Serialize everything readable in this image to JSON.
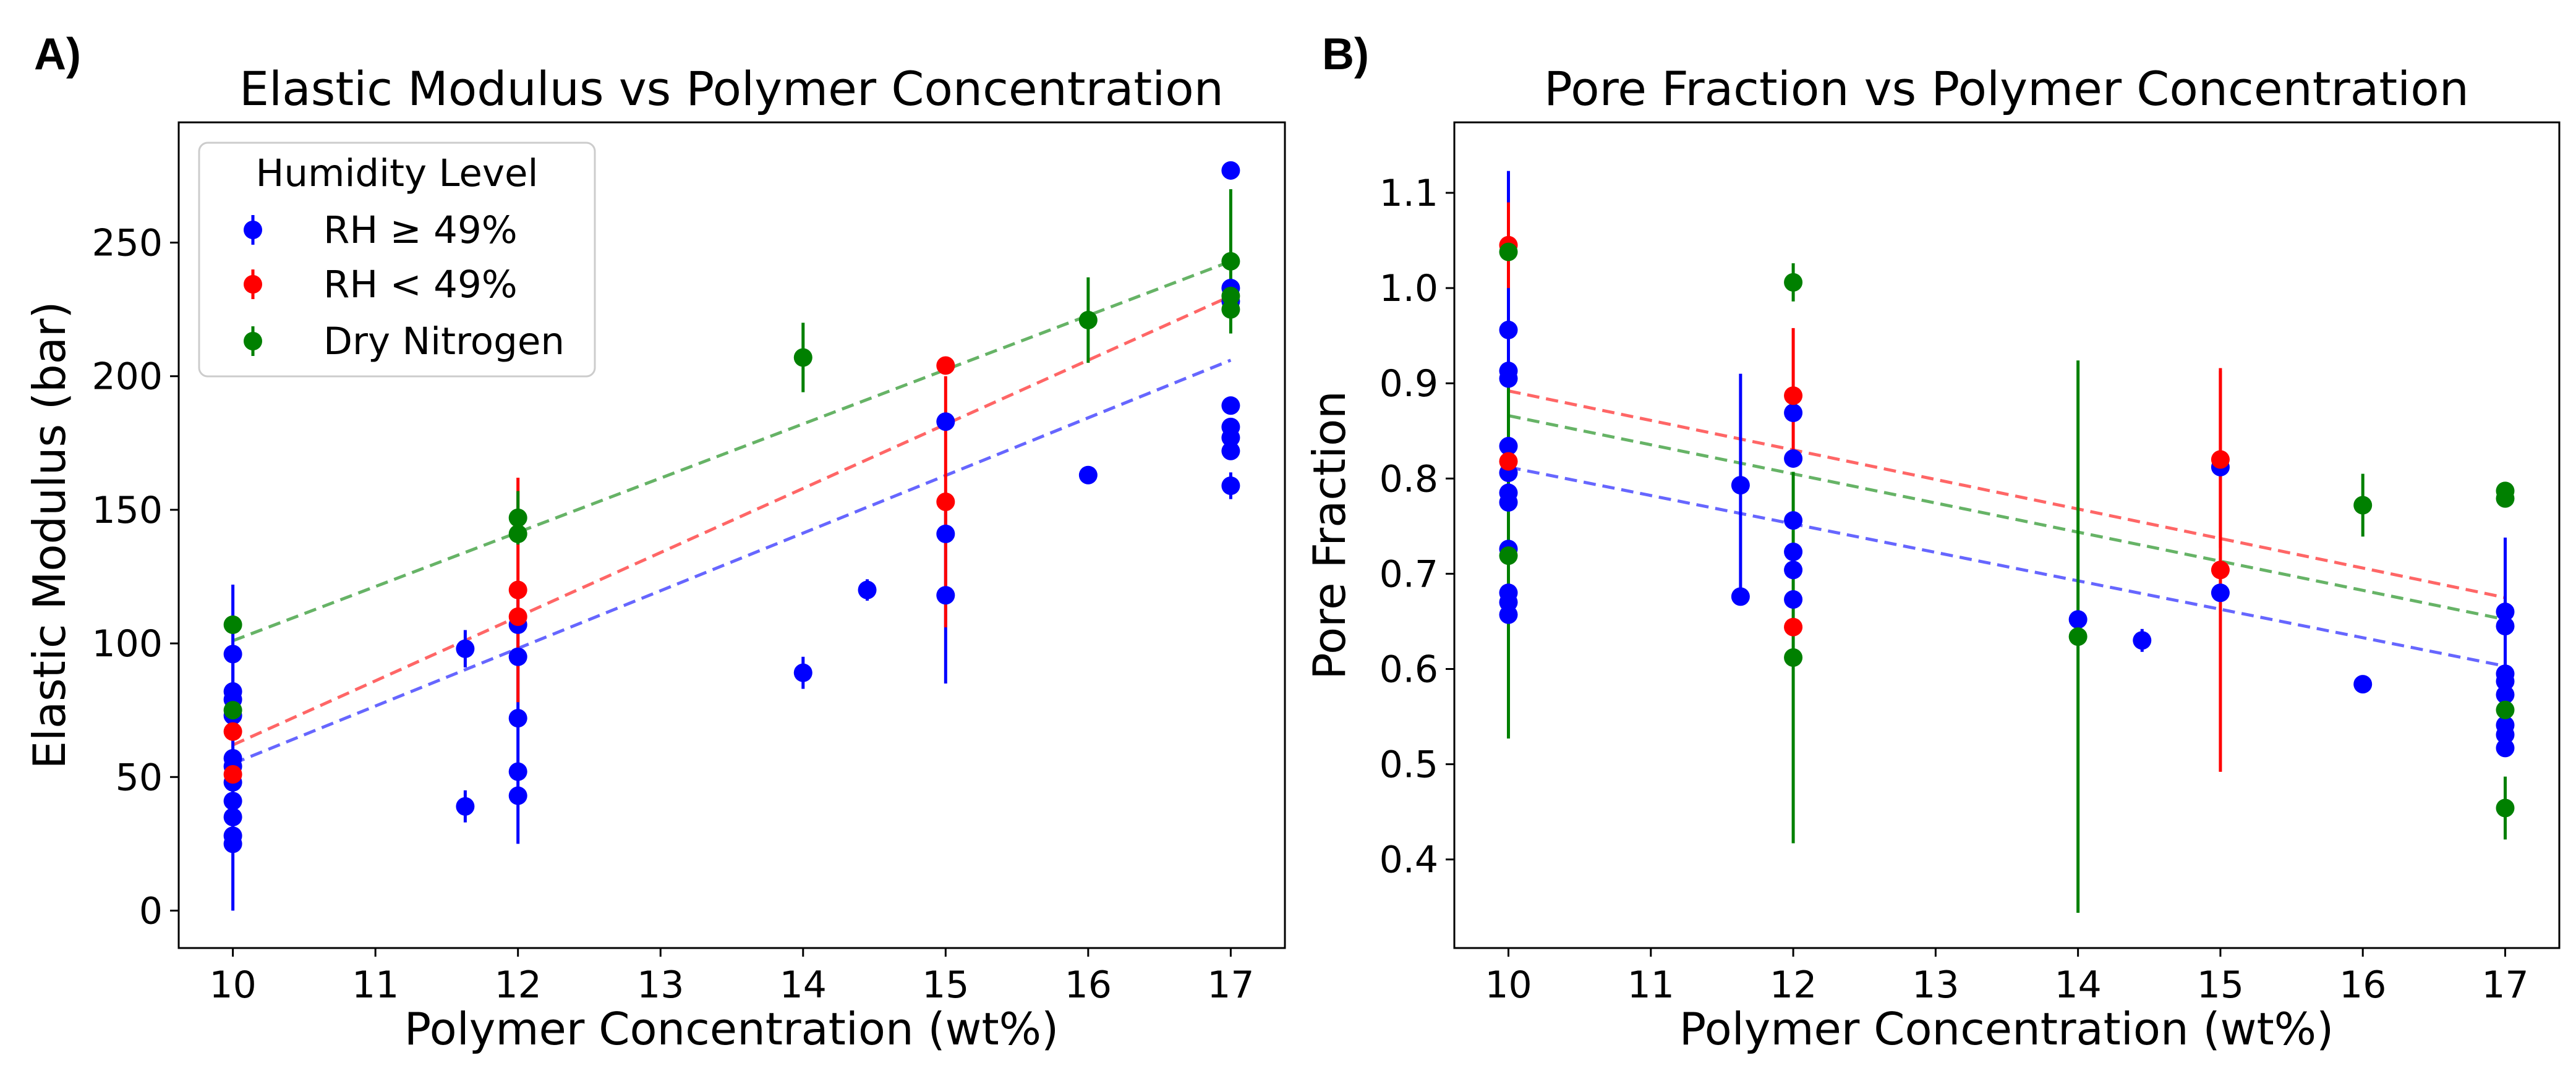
{
  "figure": {
    "panels": [
      {
        "letter": "A)",
        "title": "Elastic Modulus vs Polymer Concentration",
        "xlabel": "Polymer Concentration (wt%)",
        "ylabel": "Elastic Modulus (bar)"
      },
      {
        "letter": "B)",
        "title": "Pore Fraction vs Polymer Concentration",
        "xlabel": "Polymer Concentration (wt%)",
        "ylabel": "Pore Fraction"
      }
    ],
    "legend": {
      "title": "Humidity Level",
      "entries": [
        "RH ≥ 49%",
        "RH < 49%",
        "Dry Nitrogen"
      ]
    }
  },
  "chart_data": [
    {
      "type": "scatter",
      "title": "Elastic Modulus vs Polymer Concentration",
      "xlabel": "Polymer Concentration (wt%)",
      "ylabel": "Elastic Modulus (bar)",
      "xlim": [
        9.62,
        17.38
      ],
      "ylim": [
        -14,
        295
      ],
      "xticks": [
        10,
        11,
        12,
        13,
        14,
        15,
        16,
        17
      ],
      "yticks": [
        0,
        50,
        100,
        150,
        200,
        250
      ],
      "grid": false,
      "legend": "top-left",
      "series": [
        {
          "name": "RH ≥ 49%",
          "color": "#0000ff",
          "points": [
            {
              "x": 10,
              "y": 96,
              "err": 26
            },
            {
              "x": 10,
              "y": 82,
              "err": 0
            },
            {
              "x": 10,
              "y": 79,
              "err": 0
            },
            {
              "x": 10,
              "y": 73,
              "err": 0
            },
            {
              "x": 10,
              "y": 57,
              "err": 0
            },
            {
              "x": 10,
              "y": 54,
              "err": 0
            },
            {
              "x": 10,
              "y": 48,
              "err": 48
            },
            {
              "x": 10,
              "y": 41,
              "err": 0
            },
            {
              "x": 10,
              "y": 35,
              "err": 0
            },
            {
              "x": 10,
              "y": 28,
              "err": 0
            },
            {
              "x": 10,
              "y": 25,
              "err": 0
            },
            {
              "x": 11.63,
              "y": 39,
              "err": 6
            },
            {
              "x": 11.63,
              "y": 98,
              "err": 7
            },
            {
              "x": 12,
              "y": 107,
              "err": 0
            },
            {
              "x": 12,
              "y": 95,
              "err": 0
            },
            {
              "x": 12,
              "y": 72,
              "err": 47
            },
            {
              "x": 12,
              "y": 52,
              "err": 0
            },
            {
              "x": 12,
              "y": 43,
              "err": 0
            },
            {
              "x": 14,
              "y": 89,
              "err": 6
            },
            {
              "x": 14.45,
              "y": 120,
              "err": 4
            },
            {
              "x": 15,
              "y": 183,
              "err": 0
            },
            {
              "x": 15,
              "y": 141,
              "err": 0
            },
            {
              "x": 15,
              "y": 118,
              "err": 33
            },
            {
              "x": 16,
              "y": 163,
              "err": 3
            },
            {
              "x": 17,
              "y": 277,
              "err": 0
            },
            {
              "x": 17,
              "y": 233,
              "err": 0
            },
            {
              "x": 17,
              "y": 228,
              "err": 0
            },
            {
              "x": 17,
              "y": 189,
              "err": 0
            },
            {
              "x": 17,
              "y": 181,
              "err": 0
            },
            {
              "x": 17,
              "y": 177,
              "err": 0
            },
            {
              "x": 17,
              "y": 172,
              "err": 0
            },
            {
              "x": 17,
              "y": 159,
              "err": 5
            }
          ],
          "fit": {
            "x": [
              10,
              17
            ],
            "y": [
              55,
              206
            ]
          }
        },
        {
          "name": "RH < 49%",
          "color": "#ff0000",
          "points": [
            {
              "x": 10,
              "y": 67,
              "err": 0
            },
            {
              "x": 10,
              "y": 51,
              "err": 0
            },
            {
              "x": 12,
              "y": 120,
              "err": 42
            },
            {
              "x": 12,
              "y": 110,
              "err": 0
            },
            {
              "x": 15,
              "y": 204,
              "err": 0
            },
            {
              "x": 15,
              "y": 153,
              "err": 47
            }
          ],
          "fit": {
            "x": [
              10,
              17
            ],
            "y": [
              62,
              230
            ]
          }
        },
        {
          "name": "Dry Nitrogen",
          "color": "#008000",
          "points": [
            {
              "x": 10,
              "y": 107,
              "err": 0
            },
            {
              "x": 10,
              "y": 75,
              "err": 0
            },
            {
              "x": 12,
              "y": 147,
              "err": 10
            },
            {
              "x": 12,
              "y": 141,
              "err": 0
            },
            {
              "x": 14,
              "y": 207,
              "err": 13
            },
            {
              "x": 16,
              "y": 221,
              "err": 16
            },
            {
              "x": 17,
              "y": 243,
              "err": 27
            },
            {
              "x": 17,
              "y": 230,
              "err": 0
            },
            {
              "x": 17,
              "y": 225,
              "err": 0
            }
          ],
          "fit": {
            "x": [
              10,
              17
            ],
            "y": [
              101,
              243
            ]
          }
        }
      ]
    },
    {
      "type": "scatter",
      "title": "Pore Fraction vs Polymer Concentration",
      "xlabel": "Polymer Concentration (wt%)",
      "ylabel": "Pore Fraction",
      "xlim": [
        9.62,
        17.38
      ],
      "ylim": [
        0.307,
        1.174
      ],
      "xticks": [
        10,
        11,
        12,
        13,
        14,
        15,
        16,
        17
      ],
      "yticks": [
        0.4,
        0.5,
        0.6,
        0.7,
        0.8,
        0.9,
        1.0,
        1.1
      ],
      "grid": false,
      "series": [
        {
          "name": "RH ≥ 49%",
          "color": "#0000ff",
          "points": [
            {
              "x": 10,
              "y": 0.956,
              "err": 0.167
            },
            {
              "x": 10,
              "y": 0.913,
              "err": 0
            },
            {
              "x": 10,
              "y": 0.905,
              "err": 0
            },
            {
              "x": 10,
              "y": 0.834,
              "err": 0
            },
            {
              "x": 10,
              "y": 0.806,
              "err": 0
            },
            {
              "x": 10,
              "y": 0.785,
              "err": 0
            },
            {
              "x": 10,
              "y": 0.775,
              "err": 0
            },
            {
              "x": 10,
              "y": 0.726,
              "err": 0
            },
            {
              "x": 10,
              "y": 0.68,
              "err": 0
            },
            {
              "x": 10,
              "y": 0.67,
              "err": 0
            },
            {
              "x": 10,
              "y": 0.657,
              "err": 0
            },
            {
              "x": 11.63,
              "y": 0.793,
              "err": 0.117
            },
            {
              "x": 11.63,
              "y": 0.676,
              "err": 0
            },
            {
              "x": 12,
              "y": 0.869,
              "err": 0
            },
            {
              "x": 12,
              "y": 0.821,
              "err": 0
            },
            {
              "x": 12,
              "y": 0.756,
              "err": 0
            },
            {
              "x": 12,
              "y": 0.723,
              "err": 0
            },
            {
              "x": 12,
              "y": 0.704,
              "err": 0
            },
            {
              "x": 12,
              "y": 0.673,
              "err": 0
            },
            {
              "x": 14,
              "y": 0.652,
              "err": 0
            },
            {
              "x": 14.45,
              "y": 0.63,
              "err": 0.012
            },
            {
              "x": 15,
              "y": 0.812,
              "err": 0
            },
            {
              "x": 15,
              "y": 0.68,
              "err": 0
            },
            {
              "x": 16,
              "y": 0.584,
              "err": 0.009
            },
            {
              "x": 17,
              "y": 0.66,
              "err": 0.078
            },
            {
              "x": 17,
              "y": 0.645,
              "err": 0
            },
            {
              "x": 17,
              "y": 0.595,
              "err": 0
            },
            {
              "x": 17,
              "y": 0.587,
              "err": 0
            },
            {
              "x": 17,
              "y": 0.573,
              "err": 0
            },
            {
              "x": 17,
              "y": 0.541,
              "err": 0
            },
            {
              "x": 17,
              "y": 0.531,
              "err": 0
            },
            {
              "x": 17,
              "y": 0.517,
              "err": 0
            }
          ],
          "fit": {
            "x": [
              10,
              17
            ],
            "y": [
              0.812,
              0.603
            ]
          }
        },
        {
          "name": "RH < 49%",
          "color": "#ff0000",
          "points": [
            {
              "x": 10,
              "y": 1.045,
              "err": 0.045
            },
            {
              "x": 10,
              "y": 0.818,
              "err": 0
            },
            {
              "x": 12,
              "y": 0.887,
              "err": 0.071
            },
            {
              "x": 12,
              "y": 0.644,
              "err": 0
            },
            {
              "x": 15,
              "y": 0.82,
              "err": 0.093
            },
            {
              "x": 15,
              "y": 0.704,
              "err": 0.212
            }
          ],
          "fit": {
            "x": [
              10,
              17
            ],
            "y": [
              0.892,
              0.675
            ]
          }
        },
        {
          "name": "Dry Nitrogen",
          "color": "#008000",
          "points": [
            {
              "x": 10,
              "y": 1.038,
              "err": 0
            },
            {
              "x": 10,
              "y": 0.719,
              "err": 0.192
            },
            {
              "x": 12,
              "y": 1.006,
              "err": 0.02
            },
            {
              "x": 12,
              "y": 0.612,
              "err": 0.195
            },
            {
              "x": 14,
              "y": 0.634,
              "err": 0.29
            },
            {
              "x": 16,
              "y": 0.772,
              "err": 0.033
            },
            {
              "x": 17,
              "y": 0.787,
              "err": 0
            },
            {
              "x": 17,
              "y": 0.779,
              "err": 0
            },
            {
              "x": 17,
              "y": 0.557,
              "err": 0
            },
            {
              "x": 17,
              "y": 0.454,
              "err": 0.033
            }
          ],
          "fit": {
            "x": [
              10,
              17
            ],
            "y": [
              0.866,
              0.652
            ]
          }
        }
      ]
    }
  ]
}
